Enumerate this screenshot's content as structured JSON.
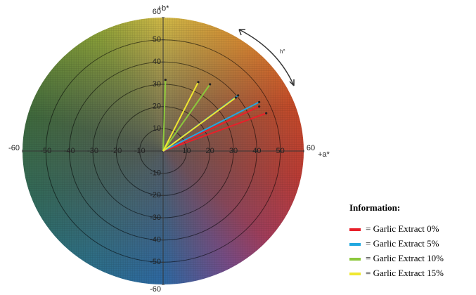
{
  "chart_data": {
    "type": "vector",
    "x_label": "+a*",
    "y_label": "+b*",
    "annotation": "h°",
    "xlim": [
      -60,
      60
    ],
    "ylim": [
      -60,
      60
    ],
    "xticks": [
      -60,
      -50,
      -40,
      -30,
      -20,
      -10,
      10,
      20,
      30,
      40,
      50,
      60
    ],
    "yticks": [
      -60,
      -50,
      -40,
      -30,
      -20,
      -10,
      10,
      20,
      30,
      40,
      50,
      60
    ],
    "legend_title": "Information:",
    "series": [
      {
        "name": "= Garlic  Extract 0%",
        "color": "#e8202a",
        "x": [
          44,
          41
        ],
        "values": [
          17,
          20
        ]
      },
      {
        "name": "= Garlic  Extract 5%",
        "color": "#22a8e0",
        "x": [
          41,
          32
        ],
        "values": [
          22,
          25
        ]
      },
      {
        "name": "= Garlic  Extract 10%",
        "color": "#8cc83c",
        "x": [
          20,
          1
        ],
        "values": [
          30,
          32
        ]
      },
      {
        "name": "= Garlic  Extract 15%",
        "color": "#f0e830",
        "x": [
          15,
          31
        ],
        "values": [
          31,
          24
        ]
      }
    ]
  }
}
